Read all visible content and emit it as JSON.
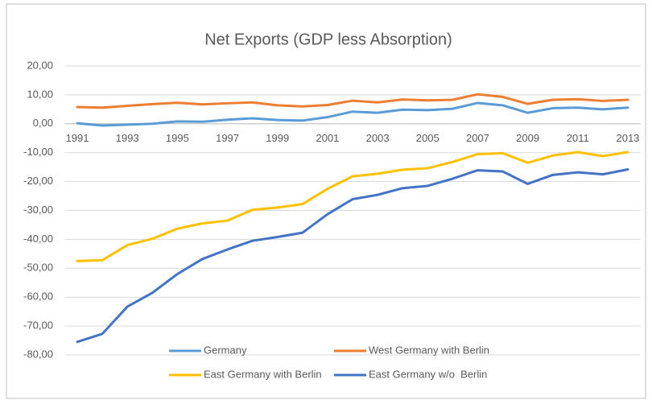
{
  "chart_data": {
    "type": "line",
    "title": "Net Exports (GDP less Absorption)",
    "categories": [
      "1991",
      null,
      "1993",
      null,
      "1995",
      null,
      "1997",
      null,
      "1999",
      null,
      "2001",
      null,
      "2003",
      null,
      "2005",
      null,
      "2007",
      null,
      "2009",
      null,
      "2011",
      null,
      "2013"
    ],
    "series": [
      {
        "name": "Germany",
        "color": "#5b9bd5",
        "values": [
          0.2,
          -0.6,
          -0.3,
          0.0,
          0.8,
          0.7,
          1.4,
          1.9,
          1.3,
          1.1,
          2.3,
          4.2,
          3.8,
          4.9,
          4.7,
          5.2,
          7.2,
          6.4,
          3.8,
          5.4,
          5.6,
          5.0,
          5.6
        ]
      },
      {
        "name": "West Germany with Berlin",
        "color": "#ed7d31",
        "values": [
          5.8,
          5.6,
          6.2,
          6.8,
          7.3,
          6.7,
          7.1,
          7.4,
          6.4,
          6.0,
          6.5,
          8.0,
          7.4,
          8.4,
          8.1,
          8.3,
          10.2,
          9.3,
          6.9,
          8.3,
          8.5,
          7.9,
          8.3
        ]
      },
      {
        "name": "East Germany with Berlin",
        "color": "#ffc000",
        "values": [
          -47.5,
          -47.2,
          -42.0,
          -39.8,
          -36.3,
          -34.5,
          -33.5,
          -29.8,
          -29.0,
          -27.8,
          -22.5,
          -18.2,
          -17.3,
          -15.9,
          -15.4,
          -13.2,
          -10.5,
          -10.2,
          -13.5,
          -11.0,
          -9.8,
          -11.2,
          -9.8
        ]
      },
      {
        "name": "East Germany w/o  Berlin",
        "color": "#4472c4",
        "values": [
          -75.5,
          -72.7,
          -63.3,
          -58.5,
          -52.0,
          -46.8,
          -43.5,
          -40.5,
          -39.2,
          -37.7,
          -31.3,
          -26.1,
          -24.6,
          -22.3,
          -21.5,
          -19.0,
          -16.1,
          -16.5,
          -20.8,
          -17.7,
          -16.8,
          -17.5,
          -15.8
        ]
      }
    ],
    "ylim": [
      -80,
      20
    ],
    "yticks": [
      {
        "value": 20,
        "label": "20,00"
      },
      {
        "value": 10,
        "label": "10,00"
      },
      {
        "value": 0,
        "label": "0,00"
      },
      {
        "value": -10,
        "label": "-10,00"
      },
      {
        "value": -20,
        "label": "-20,00"
      },
      {
        "value": -30,
        "label": "-30,00"
      },
      {
        "value": -40,
        "label": "-40,00"
      },
      {
        "value": -50,
        "label": "-50,00"
      },
      {
        "value": -60,
        "label": "-60,00"
      },
      {
        "value": -70,
        "label": "-70,00"
      },
      {
        "value": -80,
        "label": "-80,00"
      }
    ],
    "grid": true
  }
}
